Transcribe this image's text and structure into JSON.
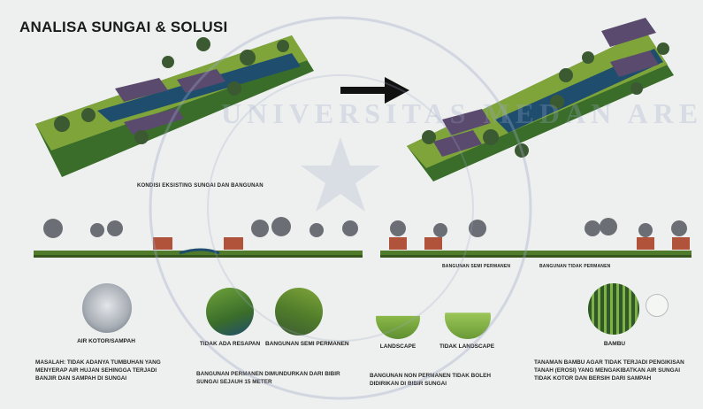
{
  "title": "ANALISA SUNGAI & SOLUSI",
  "before_caption": "KONDISI EKSISTING SUNGAI DAN BANGUNAN",
  "section_caption_left": "BANGUNAN SEMI PERMANEN",
  "section_caption_right": "BANGUNAN TIDAK PERMANEN",
  "items": [
    {
      "label": "AIR KOTOR/SAMPAH"
    },
    {
      "label": "TIDAK ADA RESAPAN"
    },
    {
      "label": "BANGUNAN SEMI PERMANEN"
    },
    {
      "label": "LANDSCAPE"
    },
    {
      "label": "TIDAK LANDSCAPE"
    },
    {
      "label": "BAMBU"
    }
  ],
  "texts": {
    "masalah": "MASALAH: TIDAK ADANYA TUMBUHAN YANG MENYERAP AIR HUJAN SEHINGGA TERJADI BANJIR DAN SAMPAH DI SUNGAI",
    "solusi_1": "BANGUNAN PERMANEN DIMUNDURKAN DARI BIBIR SUNGAI SEJAUH 15 METER",
    "solusi_2": "BANGUNAN NON PERMANEN TIDAK BOLEH DIDIRIKAN DI BIBIR SUNGAI",
    "solusi_3": "TANAMAN BAMBU AGAR TIDAK TERJADI PENGIKISAN TANAH (EROSI) YANG MENGAKIBATKAN AIR SUNGAI TIDAK KOTOR DAN BERSIH DARI SAMPAH"
  },
  "watermark": "UNIVERSITAS MEDAN AREA",
  "colors": {
    "grass": "#7fa53a",
    "river": "#1f4d6e",
    "roof": "#5a4a6e",
    "tree": "#3c5a32"
  }
}
